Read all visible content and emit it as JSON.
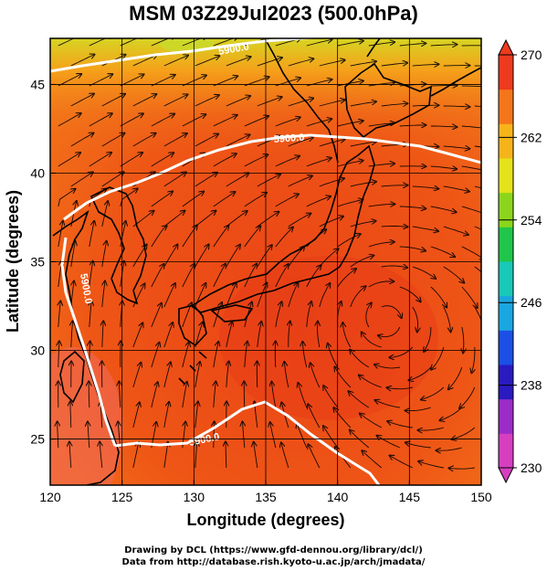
{
  "title": "MSM 03Z29Jul2023 (500.0hPa)",
  "xaxis": {
    "label": "Longitude (degrees)",
    "range": [
      120,
      150
    ],
    "ticks": [
      "120",
      "125",
      "130",
      "135",
      "140",
      "145",
      "150"
    ]
  },
  "yaxis": {
    "label": "Latitude (degrees)",
    "range": [
      22.4,
      47.6
    ],
    "ticks": [
      "25",
      "30",
      "35",
      "40",
      "45"
    ]
  },
  "colorbar": {
    "range": [
      230,
      270
    ],
    "ticks": [
      "230",
      "238",
      "246",
      "254",
      "262",
      "270"
    ],
    "colors": [
      "#d63fbf",
      "#9b2cc8",
      "#2a1ac0",
      "#1b4fe6",
      "#1aa6e0",
      "#18c8b8",
      "#1fc64a",
      "#8bd61c",
      "#e4e21a",
      "#f7b41a",
      "#f5761a",
      "#ee3a1e"
    ]
  },
  "contours": [
    {
      "label": "5900.0"
    },
    {
      "label": "5900.0"
    },
    {
      "label": "5900.0"
    },
    {
      "label": "5900.0"
    }
  ],
  "credits": {
    "line1": "Drawing by DCL (https://www.gfd-dennou.org/library/dcl/)",
    "line2": "Data from http://database.rish.kyoto-u.ac.jp/arch/jmadata/"
  }
}
